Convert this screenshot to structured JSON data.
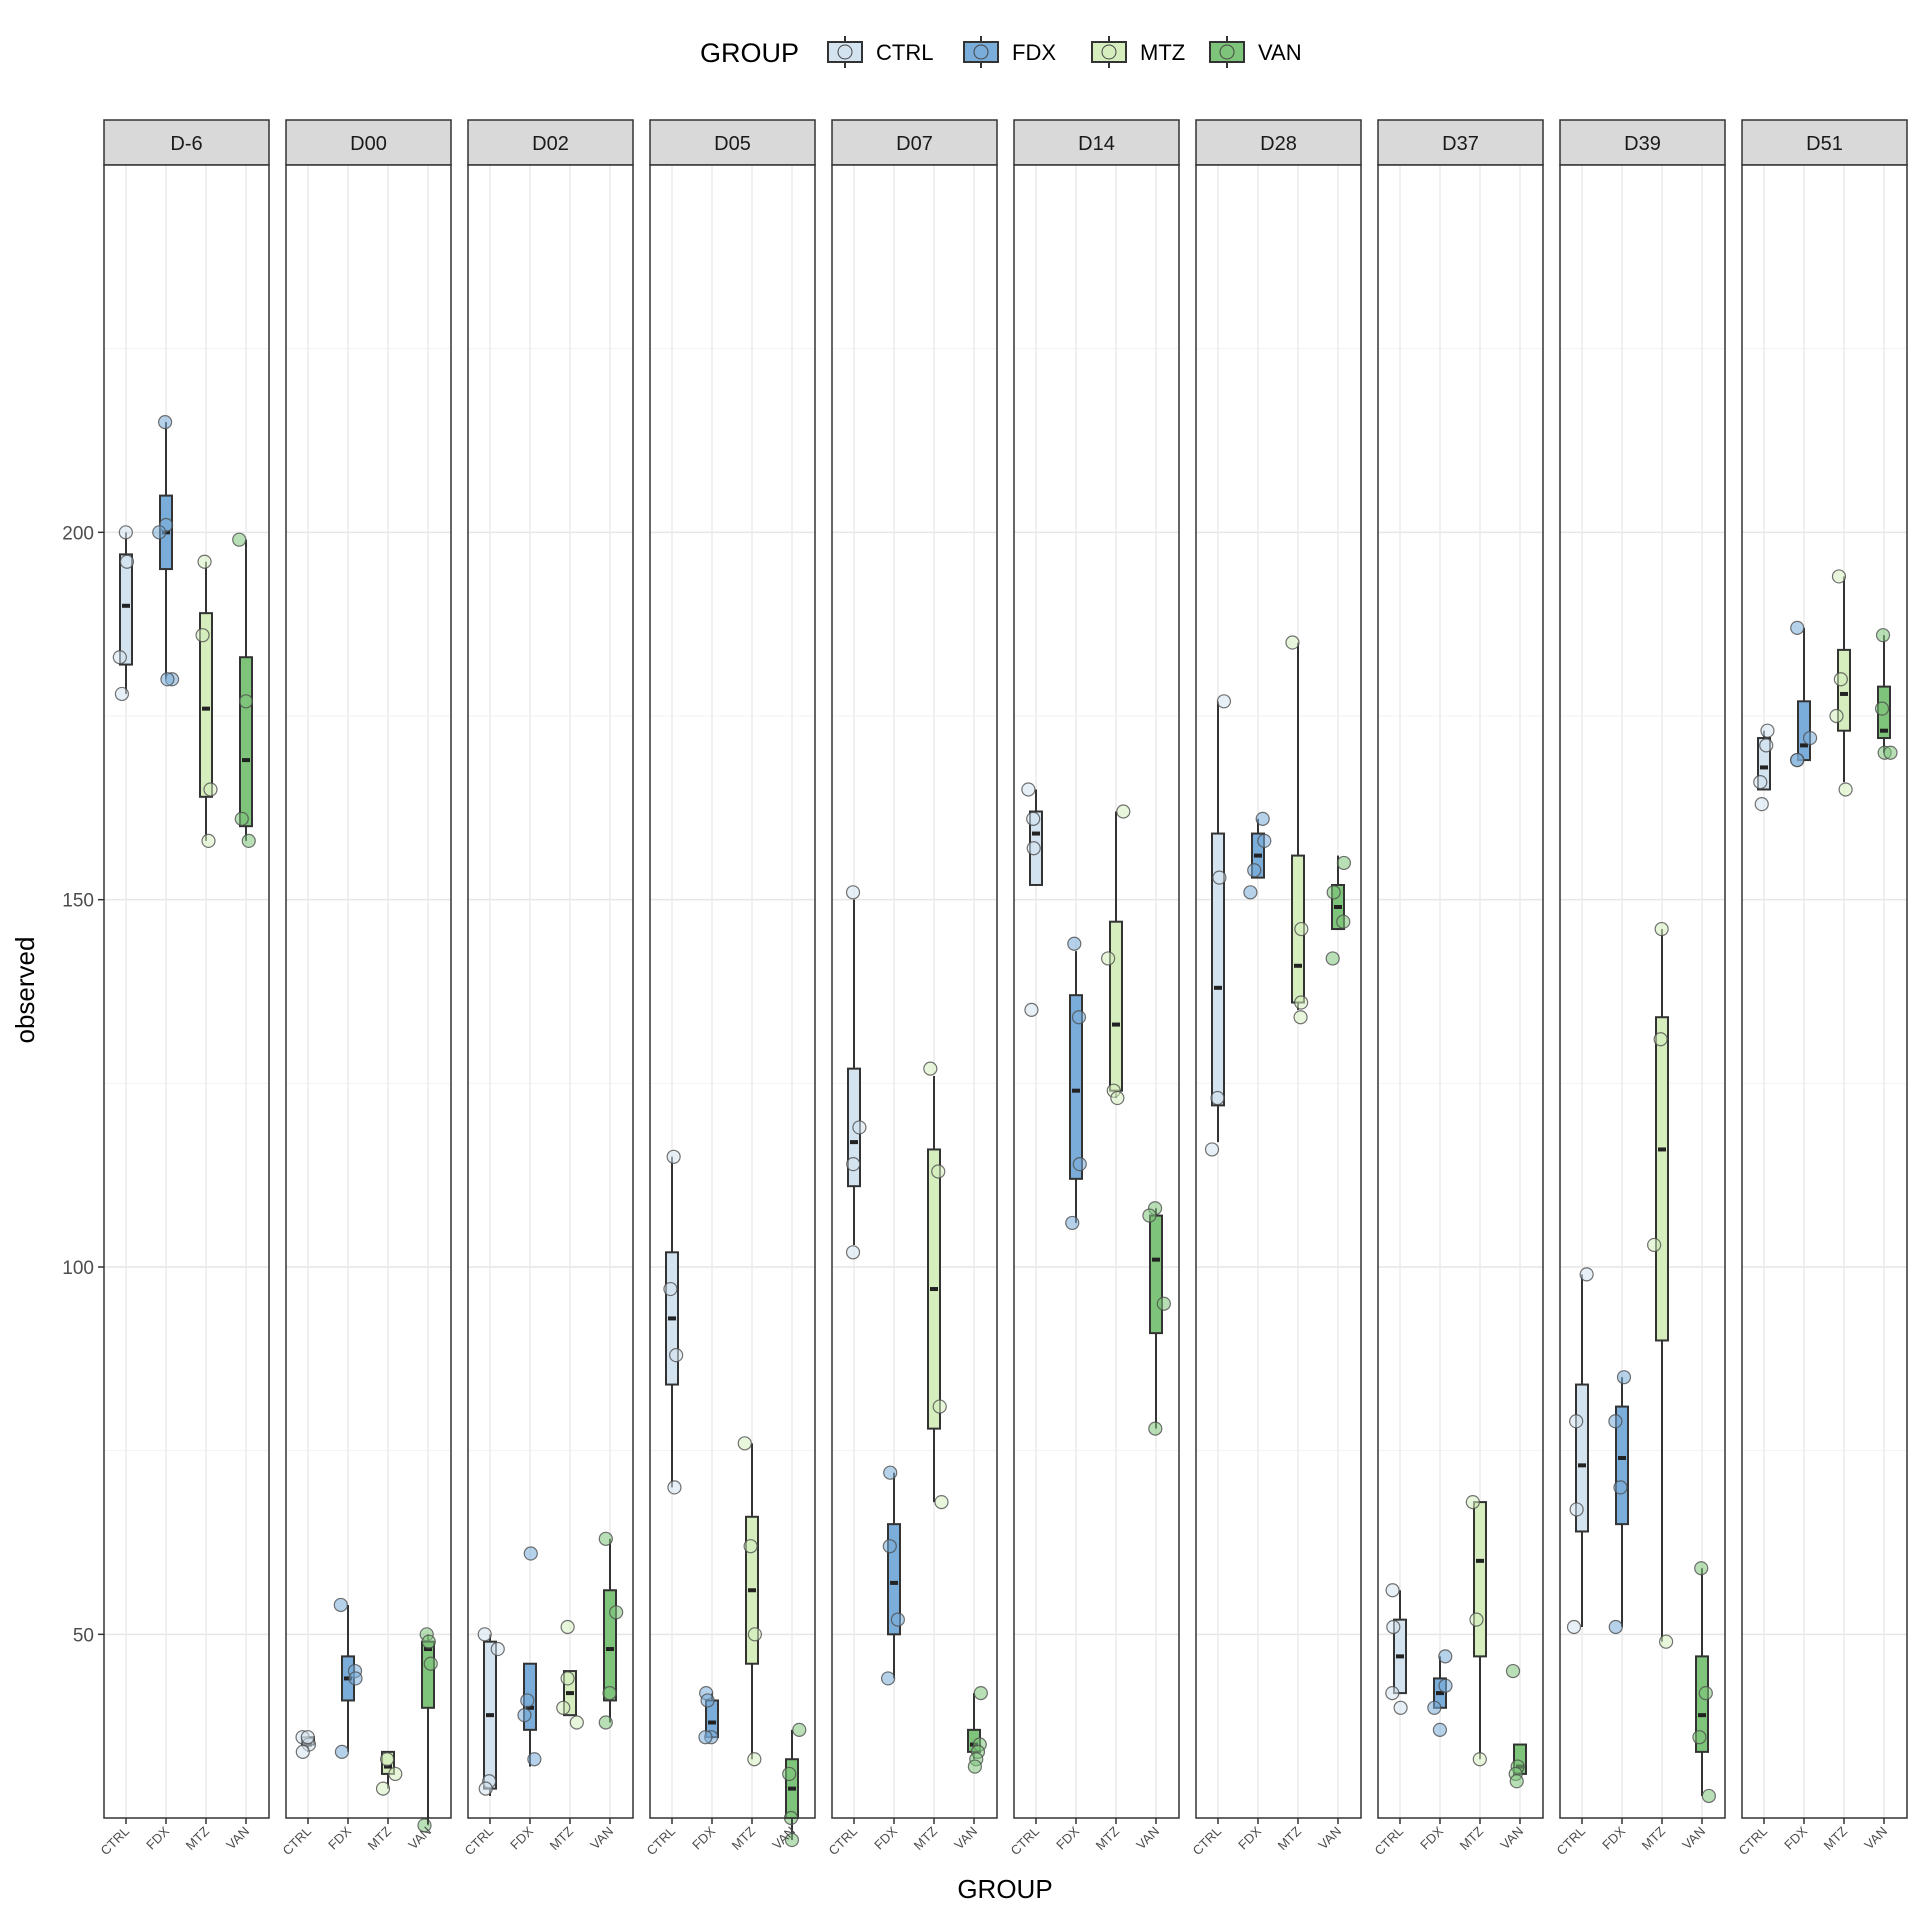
{
  "chart_data": {
    "type": "boxplot",
    "xlabel": "GROUP",
    "ylabel": "observed",
    "ylim": [
      25,
      250
    ],
    "yticks": [
      50,
      100,
      150,
      200
    ],
    "legend": {
      "title": "GROUP",
      "position": "top",
      "items": [
        {
          "label": "CTRL",
          "color": "#d4e3f0"
        },
        {
          "label": "FDX",
          "color": "#7aadd9"
        },
        {
          "label": "MTZ",
          "color": "#d6eebe"
        },
        {
          "label": "VAN",
          "color": "#7ec47a"
        }
      ]
    },
    "groups": [
      "CTRL",
      "FDX",
      "MTZ",
      "VAN"
    ],
    "panels": [
      {
        "label": "D-6",
        "boxes": [
          {
            "group": "CTRL",
            "min": 178,
            "q1": 182,
            "median": 190,
            "q3": 197,
            "max": 200,
            "points": [
              200,
              196,
              183,
              178
            ]
          },
          {
            "group": "FDX",
            "min": 180,
            "q1": 195,
            "median": 200,
            "q3": 205,
            "max": 215,
            "points": [
              215,
              201,
              200,
              180,
              180
            ]
          },
          {
            "group": "MTZ",
            "min": 158,
            "q1": 164,
            "median": 176,
            "q3": 189,
            "max": 196,
            "points": [
              196,
              186,
              165,
              158
            ]
          },
          {
            "group": "VAN",
            "min": 158,
            "q1": 160,
            "median": 169,
            "q3": 183,
            "max": 199,
            "points": [
              199,
              177,
              161,
              158
            ]
          }
        ]
      },
      {
        "label": "D00",
        "boxes": [
          {
            "group": "CTRL",
            "min": 34,
            "q1": 35,
            "median": 35,
            "q3": 36,
            "max": 36,
            "points": [
              36,
              35,
              36,
              34
            ]
          },
          {
            "group": "FDX",
            "min": 34,
            "q1": 41,
            "median": 44,
            "q3": 47,
            "max": 54,
            "points": [
              54,
              45,
              44,
              34
            ]
          },
          {
            "group": "MTZ",
            "min": 29,
            "q1": 31,
            "median": 32,
            "q3": 34,
            "max": 34,
            "points": [
              33,
              31,
              29
            ]
          },
          {
            "group": "VAN",
            "min": 24,
            "q1": 40,
            "median": 48,
            "q3": 49,
            "max": 50,
            "points": [
              50,
              49,
              46,
              24
            ]
          }
        ]
      },
      {
        "label": "D02",
        "boxes": [
          {
            "group": "CTRL",
            "min": 28,
            "q1": 29,
            "median": 39,
            "q3": 49,
            "max": 50,
            "points": [
              50,
              48,
              30,
              29
            ]
          },
          {
            "group": "FDX",
            "min": 32,
            "q1": 37,
            "median": 40,
            "q3": 46,
            "max": 46,
            "points": [
              61,
              41,
              39,
              33
            ]
          },
          {
            "group": "MTZ",
            "min": 39,
            "q1": 39,
            "median": 42,
            "q3": 45,
            "max": 45,
            "points": [
              51,
              44,
              40,
              38
            ]
          },
          {
            "group": "VAN",
            "min": 38,
            "q1": 41,
            "median": 48,
            "q3": 56,
            "max": 63,
            "points": [
              63,
              53,
              42,
              38
            ]
          }
        ]
      },
      {
        "label": "D05",
        "boxes": [
          {
            "group": "CTRL",
            "min": 70,
            "q1": 84,
            "median": 93,
            "q3": 102,
            "max": 115,
            "points": [
              115,
              97,
              88,
              70
            ]
          },
          {
            "group": "FDX",
            "min": 36,
            "q1": 36,
            "median": 38,
            "q3": 41,
            "max": 42,
            "points": [
              42,
              41,
              36,
              36
            ]
          },
          {
            "group": "MTZ",
            "min": 33,
            "q1": 46,
            "median": 56,
            "q3": 66,
            "max": 76,
            "points": [
              76,
              62,
              50,
              33
            ]
          },
          {
            "group": "VAN",
            "min": 22,
            "q1": 25,
            "median": 29,
            "q3": 33,
            "max": 37,
            "points": [
              37,
              31,
              25,
              22
            ]
          }
        ]
      },
      {
        "label": "D07",
        "boxes": [
          {
            "group": "CTRL",
            "min": 103,
            "q1": 111,
            "median": 117,
            "q3": 127,
            "max": 150,
            "points": [
              151,
              119,
              114,
              102
            ]
          },
          {
            "group": "FDX",
            "min": 44,
            "q1": 50,
            "median": 57,
            "q3": 65,
            "max": 72,
            "points": [
              72,
              62,
              52,
              44
            ]
          },
          {
            "group": "MTZ",
            "min": 68,
            "q1": 78,
            "median": 97,
            "q3": 116,
            "max": 126,
            "points": [
              127,
              113,
              81,
              68
            ]
          },
          {
            "group": "VAN",
            "min": 33,
            "q1": 34,
            "median": 35,
            "q3": 37,
            "max": 42,
            "points": [
              42,
              35,
              34,
              33,
              32
            ]
          }
        ]
      },
      {
        "label": "D14",
        "boxes": [
          {
            "group": "CTRL",
            "min": 152,
            "q1": 152,
            "median": 159,
            "q3": 162,
            "max": 165,
            "points": [
              165,
              161,
              157,
              135
            ]
          },
          {
            "group": "FDX",
            "min": 106,
            "q1": 112,
            "median": 124,
            "q3": 137,
            "max": 143,
            "points": [
              144,
              134,
              114,
              106
            ]
          },
          {
            "group": "MTZ",
            "min": 123,
            "q1": 124,
            "median": 133,
            "q3": 147,
            "max": 162,
            "points": [
              162,
              142,
              124,
              123
            ]
          },
          {
            "group": "VAN",
            "min": 78,
            "q1": 91,
            "median": 101,
            "q3": 107,
            "max": 108,
            "points": [
              108,
              107,
              95,
              78
            ]
          }
        ]
      },
      {
        "label": "D28",
        "boxes": [
          {
            "group": "CTRL",
            "min": 117,
            "q1": 122,
            "median": 138,
            "q3": 159,
            "max": 177,
            "points": [
              177,
              153,
              123,
              116
            ]
          },
          {
            "group": "FDX",
            "min": 153,
            "q1": 153,
            "median": 156,
            "q3": 159,
            "max": 161,
            "points": [
              161,
              158,
              154,
              151
            ]
          },
          {
            "group": "MTZ",
            "min": 135,
            "q1": 136,
            "median": 141,
            "q3": 156,
            "max": 185,
            "points": [
              185,
              146,
              136,
              134
            ]
          },
          {
            "group": "VAN",
            "min": 146,
            "q1": 146,
            "median": 149,
            "q3": 152,
            "max": 156,
            "points": [
              155,
              151,
              147,
              142
            ]
          }
        ]
      },
      {
        "label": "D37",
        "boxes": [
          {
            "group": "CTRL",
            "min": 42,
            "q1": 42,
            "median": 47,
            "q3": 52,
            "max": 56,
            "points": [
              56,
              51,
              42,
              40
            ]
          },
          {
            "group": "FDX",
            "min": 40,
            "q1": 40,
            "median": 42,
            "q3": 44,
            "max": 47,
            "points": [
              47,
              43,
              40,
              37
            ]
          },
          {
            "group": "MTZ",
            "min": 33,
            "q1": 47,
            "median": 60,
            "q3": 68,
            "max": 68,
            "points": [
              68,
              52,
              33
            ]
          },
          {
            "group": "VAN",
            "min": 31,
            "q1": 31,
            "median": 32,
            "q3": 35,
            "max": 35,
            "points": [
              45,
              32,
              31,
              30
            ]
          }
        ]
      },
      {
        "label": "D39",
        "boxes": [
          {
            "group": "CTRL",
            "min": 51,
            "q1": 64,
            "median": 73,
            "q3": 84,
            "max": 99,
            "points": [
              99,
              79,
              67,
              51
            ]
          },
          {
            "group": "FDX",
            "min": 51,
            "q1": 65,
            "median": 74,
            "q3": 81,
            "max": 85,
            "points": [
              85,
              79,
              70,
              51
            ]
          },
          {
            "group": "MTZ",
            "min": 49,
            "q1": 90,
            "median": 116,
            "q3": 134,
            "max": 146,
            "points": [
              146,
              131,
              103,
              49
            ]
          },
          {
            "group": "VAN",
            "min": 28,
            "q1": 34,
            "median": 39,
            "q3": 47,
            "max": 59,
            "points": [
              59,
              42,
              36,
              28
            ]
          }
        ]
      },
      {
        "label": "D51",
        "boxes": [
          {
            "group": "CTRL",
            "min": 165,
            "q1": 165,
            "median": 168,
            "q3": 172,
            "max": 173,
            "points": [
              173,
              171,
              166,
              163
            ]
          },
          {
            "group": "FDX",
            "min": 169,
            "q1": 169,
            "median": 171,
            "q3": 177,
            "max": 187,
            "points": [
              187,
              172,
              169,
              169
            ]
          },
          {
            "group": "MTZ",
            "min": 166,
            "q1": 173,
            "median": 178,
            "q3": 184,
            "max": 194,
            "points": [
              194,
              180,
              175,
              165
            ]
          },
          {
            "group": "VAN",
            "min": 170,
            "q1": 172,
            "median": 173,
            "q3": 179,
            "max": 186,
            "points": [
              186,
              176,
              170,
              170
            ]
          }
        ]
      }
    ]
  }
}
